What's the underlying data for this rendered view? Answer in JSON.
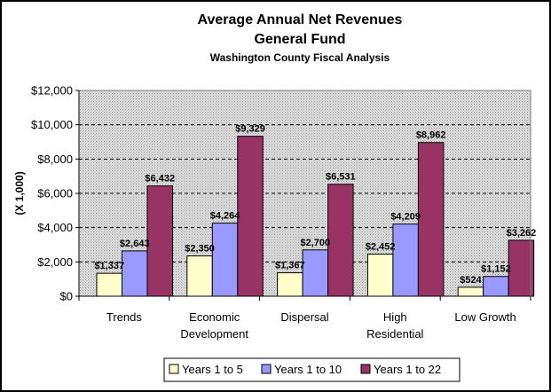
{
  "chart_data": {
    "type": "bar",
    "title": "Average Annual Net Revenues",
    "subtitle_1": "General Fund",
    "subtitle_2": "Washington County Fiscal Analysis",
    "ylabel": "(X 1,000)",
    "xlabel": "",
    "ylim": [
      0,
      12000
    ],
    "yticks": [
      "$0",
      "$2,000",
      "$4,000",
      "$6,000",
      "$8,000",
      "$10,000",
      "$12,000"
    ],
    "ytick_values": [
      0,
      2000,
      4000,
      6000,
      8000,
      10000,
      12000
    ],
    "grid": true,
    "legend_position": "bottom",
    "categories": [
      [
        "Trends"
      ],
      [
        "Economic",
        "Development"
      ],
      [
        "Dispersal"
      ],
      [
        "High",
        "Residential"
      ],
      [
        "Low Growth"
      ]
    ],
    "series": [
      {
        "name": "Years 1 to 5",
        "color": "#ffffcc",
        "values": [
          1337,
          2350,
          1367,
          2452,
          524
        ],
        "labels": [
          "$1,337",
          "$2,350",
          "$1,367",
          "$2,452",
          "$524"
        ]
      },
      {
        "name": "Years 1 to 10",
        "color": "#9999ff",
        "values": [
          2643,
          4264,
          2700,
          4209,
          1152
        ],
        "labels": [
          "$2,643",
          "$4,264",
          "$2,700",
          "$4,209",
          "$1,152"
        ]
      },
      {
        "name": "Years 1 to 22",
        "color": "#993366",
        "values": [
          6432,
          9329,
          6531,
          8962,
          3262
        ],
        "labels": [
          "$6,432",
          "$9,329",
          "$6,531",
          "$8,962",
          "$3,262"
        ]
      }
    ]
  }
}
